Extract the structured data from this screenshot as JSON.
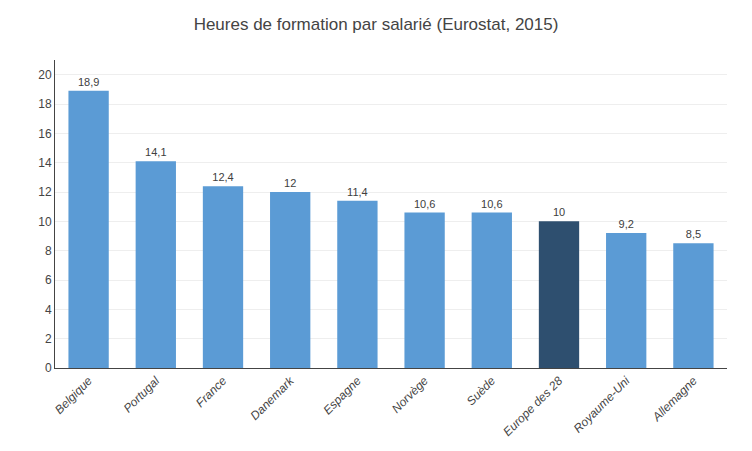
{
  "chart_data": {
    "type": "bar",
    "title": "Heures de formation par salarié (Eurostat, 2015)",
    "categories": [
      "Belgique",
      "Portugal",
      "France",
      "Danemark",
      "Espagne",
      "Norvège",
      "Suède",
      "Europe des 28",
      "Royaume-Uni",
      "Allemagne"
    ],
    "values": [
      18.9,
      14.1,
      12.4,
      12.0,
      11.4,
      10.6,
      10.6,
      10.0,
      9.2,
      8.5
    ],
    "value_labels": [
      "18,9",
      "14,1",
      "12,4",
      "12",
      "11,4",
      "10,6",
      "10,6",
      "10",
      "9,2",
      "8,5"
    ],
    "data_labels": true,
    "colors": [
      "#5b9bd5",
      "#5b9bd5",
      "#5b9bd5",
      "#5b9bd5",
      "#5b9bd5",
      "#5b9bd5",
      "#5b9bd5",
      "#2e4f6f",
      "#5b9bd5",
      "#5b9bd5"
    ],
    "ylim": [
      0,
      21
    ],
    "yticks": [
      0,
      2,
      4,
      6,
      8,
      10,
      12,
      14,
      16,
      18,
      20
    ],
    "grid": true
  }
}
